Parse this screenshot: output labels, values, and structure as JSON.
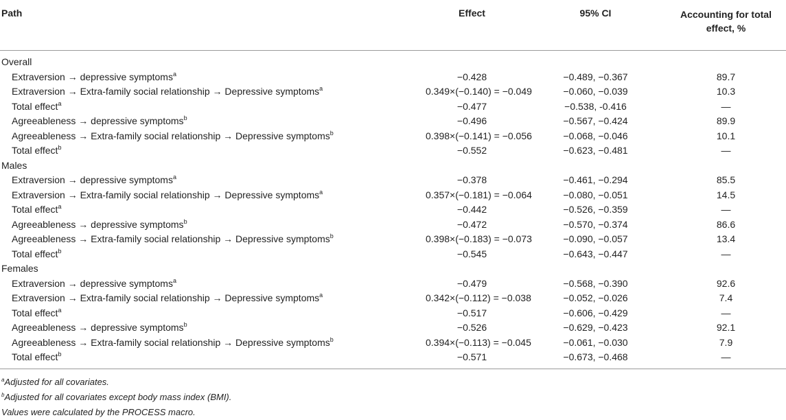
{
  "headers": {
    "path": "Path",
    "effect": "Effect",
    "ci": "95% CI",
    "accounting_line1": "Accounting for total",
    "accounting_line2": "effect, %"
  },
  "groups": [
    {
      "name": "Overall",
      "rows": [
        {
          "path": "Extraversion → depressive symptoms",
          "sup": "a",
          "effect": "−0.428",
          "ci": "−0.489, −0.367",
          "acct": "89.7"
        },
        {
          "path": "Extraversion → Extra-family social relationship → Depressive symptoms",
          "sup": "a",
          "effect": "0.349×(−0.140) = −0.049",
          "ci": "−0.060, −0.039",
          "acct": "10.3"
        },
        {
          "path": "Total effect",
          "sup": "a",
          "effect": "−0.477",
          "ci": "−0.538, -0.416",
          "acct": "—"
        },
        {
          "path": "Agreeableness → depressive symptoms",
          "sup": "b",
          "effect": "−0.496",
          "ci": "−0.567, −0.424",
          "acct": "89.9"
        },
        {
          "path": "Agreeableness → Extra-family social relationship → Depressive symptoms",
          "sup": "b",
          "effect": "0.398×(−0.141) = −0.056",
          "ci": "−0.068, −0.046",
          "acct": "10.1"
        },
        {
          "path": "Total effect",
          "sup": "b",
          "effect": "−0.552",
          "ci": "−0.623, −0.481",
          "acct": "—"
        }
      ]
    },
    {
      "name": "Males",
      "rows": [
        {
          "path": "Extraversion → depressive symptoms",
          "sup": "a",
          "effect": "−0.378",
          "ci": "−0.461, −0.294",
          "acct": "85.5"
        },
        {
          "path": "Extraversion → Extra-family social relationship → Depressive symptoms",
          "sup": "a",
          "effect": "0.357×(−0.181) = −0.064",
          "ci": "−0.080, −0.051",
          "acct": "14.5"
        },
        {
          "path": "Total effect",
          "sup": "a",
          "effect": "−0.442",
          "ci": "−0.526, −0.359",
          "acct": "—"
        },
        {
          "path": "Agreeableness → depressive symptoms",
          "sup": "b",
          "effect": "−0.472",
          "ci": "−0.570, −0.374",
          "acct": "86.6"
        },
        {
          "path": "Agreeableness → Extra-family social relationship → Depressive symptoms",
          "sup": "b",
          "effect": "0.398×(−0.183) = −0.073",
          "ci": "−0.090, −0.057",
          "acct": "13.4"
        },
        {
          "path": "Total effect",
          "sup": "b",
          "effect": "−0.545",
          "ci": "−0.643, −0.447",
          "acct": "—"
        }
      ]
    },
    {
      "name": "Females",
      "rows": [
        {
          "path": "Extraversion → depressive symptoms",
          "sup": "a",
          "effect": "−0.479",
          "ci": "−0.568, −0.390",
          "acct": "92.6"
        },
        {
          "path": "Extraversion → Extra-family social relationship → Depressive symptoms",
          "sup": "a",
          "effect": "0.342×(−0.112) = −0.038",
          "ci": "−0.052, −0.026",
          "acct": "7.4"
        },
        {
          "path": "Total effect",
          "sup": "a",
          "effect": "−0.517",
          "ci": "−0.606, −0.429",
          "acct": "—"
        },
        {
          "path": "Agreeableness → depressive symptoms",
          "sup": "b",
          "effect": "−0.526",
          "ci": "−0.629, −0.423",
          "acct": "92.1"
        },
        {
          "path": "Agreeableness → Extra-family social relationship → Depressive symptoms",
          "sup": "b",
          "effect": "0.394×(−0.113) = −0.045",
          "ci": "−0.061, −0.030",
          "acct": "7.9"
        },
        {
          "path": "Total effect",
          "sup": "b",
          "effect": "−0.571",
          "ci": "−0.673, −0.468",
          "acct": "—"
        }
      ]
    }
  ],
  "notes": [
    {
      "sup": "a",
      "text": "Adjusted for all covariates."
    },
    {
      "sup": "b",
      "text": "Adjusted for all covariates except body mass index (BMI)."
    },
    {
      "sup": "",
      "text": "Values were calculated by the PROCESS macro."
    }
  ]
}
